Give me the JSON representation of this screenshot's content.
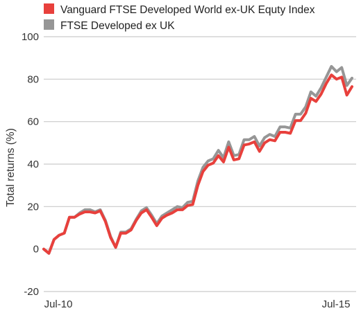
{
  "chart_data": {
    "type": "line",
    "title": "",
    "xlabel": "",
    "ylabel": "Total returns (%)",
    "ylim": [
      -20,
      100
    ],
    "yticks": [
      -20,
      0,
      20,
      40,
      60,
      80,
      100
    ],
    "xtick_labels": [
      "Jul-10",
      "Jul-15"
    ],
    "grid": true,
    "legend_position": "top-left",
    "x": [
      "2010-07",
      "2010-08",
      "2010-09",
      "2010-10",
      "2010-11",
      "2010-12",
      "2011-01",
      "2011-02",
      "2011-03",
      "2011-04",
      "2011-05",
      "2011-06",
      "2011-07",
      "2011-08",
      "2011-09",
      "2011-10",
      "2011-11",
      "2011-12",
      "2012-01",
      "2012-02",
      "2012-03",
      "2012-04",
      "2012-05",
      "2012-06",
      "2012-07",
      "2012-08",
      "2012-09",
      "2012-10",
      "2012-11",
      "2012-12",
      "2013-01",
      "2013-02",
      "2013-03",
      "2013-04",
      "2013-05",
      "2013-06",
      "2013-07",
      "2013-08",
      "2013-09",
      "2013-10",
      "2013-11",
      "2013-12",
      "2014-01",
      "2014-02",
      "2014-03",
      "2014-04",
      "2014-05",
      "2014-06",
      "2014-07",
      "2014-08",
      "2014-09",
      "2014-10",
      "2014-11",
      "2014-12",
      "2015-01",
      "2015-02",
      "2015-03",
      "2015-04",
      "2015-05",
      "2015-06",
      "2015-07"
    ],
    "series": [
      {
        "name": "Vanguard FTSE Developed World ex-UK Equty Index",
        "color": "#e8403c",
        "values": [
          0,
          -2,
          4.5,
          6.5,
          7.5,
          15,
          15,
          16.5,
          17.5,
          17.5,
          17,
          18,
          13,
          5.5,
          0.8,
          7.5,
          7.5,
          9,
          13.5,
          17,
          18.5,
          15,
          11,
          14.5,
          16,
          17,
          18.5,
          18.5,
          20.5,
          21,
          30,
          36.5,
          39.5,
          40.5,
          44,
          41,
          48,
          42,
          42.5,
          49,
          49.5,
          50.5,
          46,
          50,
          51.5,
          51,
          55,
          55,
          54.5,
          60.5,
          60.5,
          64,
          71,
          69.5,
          73,
          78,
          82,
          80,
          81,
          72.5,
          76.5
        ]
      },
      {
        "name": "FTSE Developed ex UK",
        "color": "#969696",
        "values": [
          0,
          -2,
          4.5,
          6.5,
          7.5,
          15,
          15,
          17,
          18.5,
          18.5,
          17.5,
          18.5,
          13.5,
          6,
          0.8,
          8,
          8,
          9.5,
          14,
          18,
          19.5,
          16,
          12,
          15.5,
          17,
          18.5,
          20,
          19.5,
          22,
          22.5,
          32,
          38.5,
          41.5,
          42.5,
          46.5,
          43,
          50.5,
          44,
          44.5,
          51.5,
          51.5,
          53,
          48.5,
          52.5,
          54,
          53,
          57.5,
          57.5,
          57,
          63.5,
          63.5,
          67,
          74,
          72,
          76,
          81,
          86,
          83.5,
          85.5,
          77,
          80.5
        ]
      }
    ]
  }
}
